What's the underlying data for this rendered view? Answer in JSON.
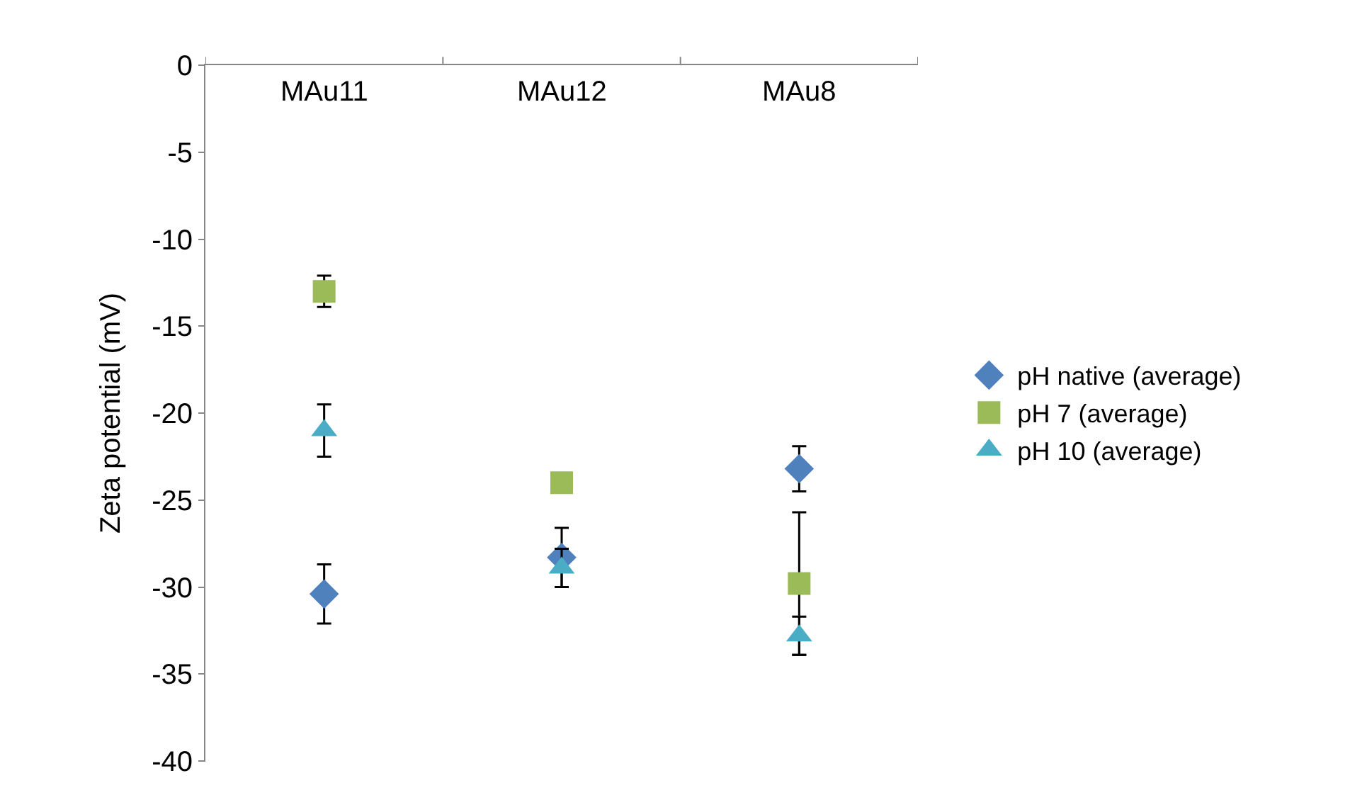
{
  "chart_data": {
    "type": "scatter",
    "ylabel": "Zeta potential (mV)",
    "categories": [
      "MAu11",
      "MAu12",
      "MAu8"
    ],
    "series": [
      {
        "name": "pH native (average)",
        "color": "#4f81bd",
        "marker": "diamond",
        "values": [
          -30.4,
          -28.3,
          -23.2
        ],
        "errors": [
          1.7,
          1.7,
          1.3
        ]
      },
      {
        "name": "pH 7 (average)",
        "color": "#9bbb59",
        "marker": "square",
        "values": [
          -13.0,
          -24.0,
          -29.8
        ],
        "errors": [
          0.9,
          null,
          4.1
        ]
      },
      {
        "name": "pH 10 (average)",
        "color": "#4bacc6",
        "marker": "triangle",
        "values": [
          -21.0,
          -28.9,
          -32.8
        ],
        "errors": [
          1.5,
          1.1,
          1.1
        ]
      }
    ],
    "ylim": [
      -40,
      0
    ],
    "yticks": [
      0,
      -5,
      -10,
      -15,
      -20,
      -25,
      -30,
      -35,
      -40
    ],
    "legend": "right"
  }
}
